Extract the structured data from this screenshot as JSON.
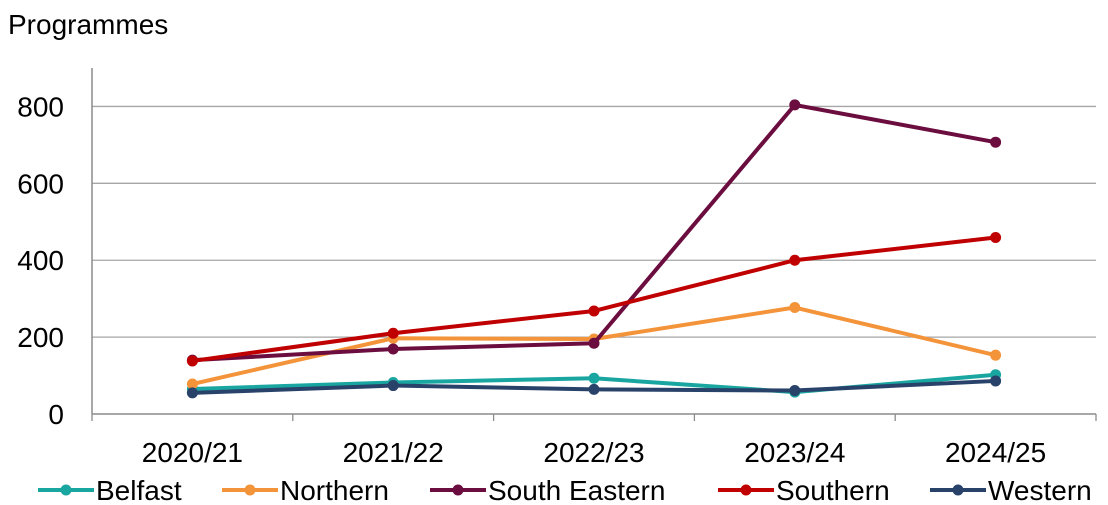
{
  "chart_data": {
    "type": "line",
    "title": "",
    "ylabel": "Programmes",
    "xlabel": "",
    "categories": [
      "2020/21",
      "2021/22",
      "2022/23",
      "2023/24",
      "2024/25"
    ],
    "ylim": [
      0,
      900
    ],
    "yticks": [
      0,
      200,
      400,
      600,
      800
    ],
    "grid": true,
    "legend_position": "bottom",
    "series": [
      {
        "name": "Belfast",
        "color": "#1aa6a0",
        "values": [
          65,
          82,
          93,
          57,
          102
        ]
      },
      {
        "name": "Northern",
        "color": "#f4943a",
        "values": [
          78,
          197,
          195,
          277,
          153
        ]
      },
      {
        "name": "South Eastern",
        "color": "#6b0d3f",
        "values": [
          140,
          169,
          184,
          804,
          707
        ]
      },
      {
        "name": "Southern",
        "color": "#c00000",
        "values": [
          138,
          210,
          268,
          400,
          459
        ]
      },
      {
        "name": "Western",
        "color": "#28426a",
        "values": [
          55,
          74,
          64,
          61,
          86
        ]
      }
    ]
  }
}
